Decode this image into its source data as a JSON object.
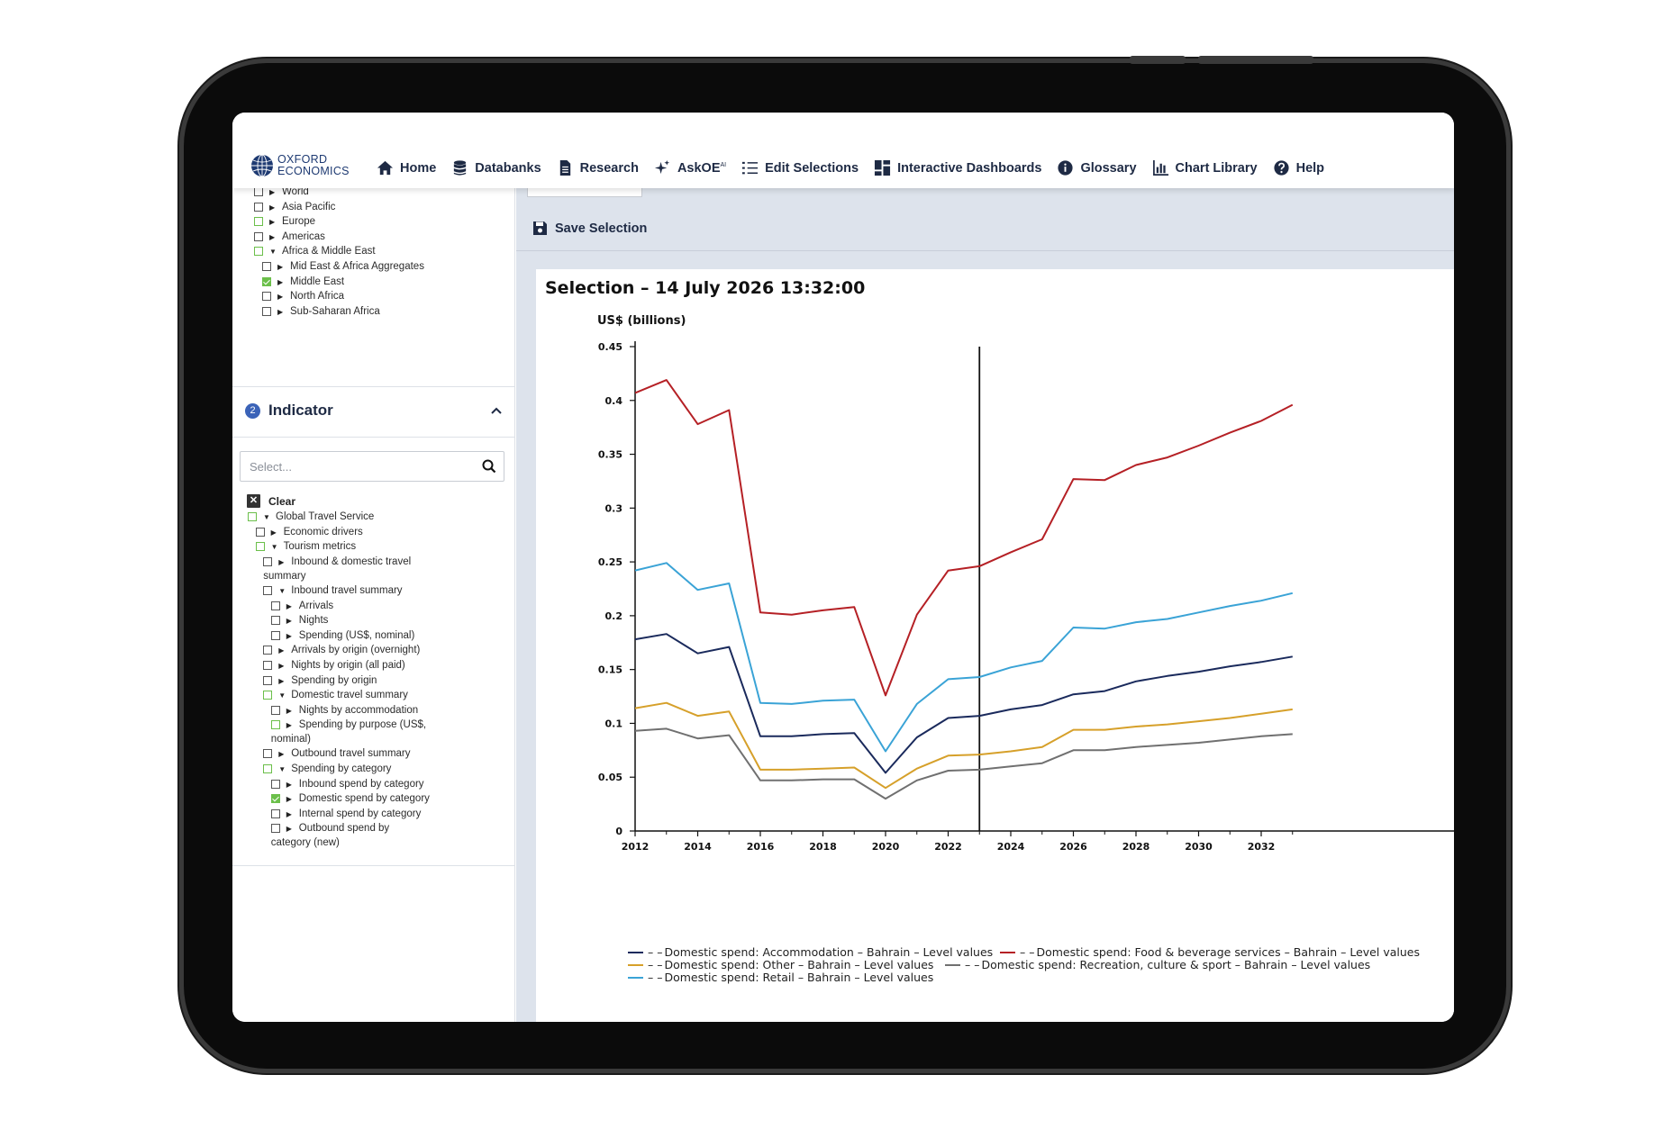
{
  "brand": {
    "line1": "OXFORD",
    "line2": "ECONOMICS"
  },
  "nav": [
    {
      "label": "Home",
      "icon": "home-icon"
    },
    {
      "label": "Databanks",
      "icon": "database-icon"
    },
    {
      "label": "Research",
      "icon": "document-icon"
    },
    {
      "label": "AskOE",
      "sup": "AI",
      "icon": "sparkle-icon"
    },
    {
      "label": "Edit Selections",
      "icon": "list-icon"
    },
    {
      "label": "Interactive Dashboards",
      "icon": "dashboard-icon"
    },
    {
      "label": "Glossary",
      "icon": "info-icon"
    },
    {
      "label": "Chart Library",
      "icon": "bar-chart-icon"
    },
    {
      "label": "Help",
      "icon": "help-icon"
    }
  ],
  "location_tree": [
    {
      "label": "World",
      "state": "none",
      "caret": "right",
      "indent": 0
    },
    {
      "label": "Asia Pacific",
      "state": "none",
      "caret": "right",
      "indent": 0
    },
    {
      "label": "Europe",
      "state": "partial",
      "caret": "right",
      "indent": 0
    },
    {
      "label": "Americas",
      "state": "none",
      "caret": "right",
      "indent": 0
    },
    {
      "label": "Africa & Middle East",
      "state": "partial",
      "caret": "down",
      "indent": 0
    },
    {
      "label": "Mid East & Africa Aggregates",
      "state": "none",
      "caret": "right",
      "indent": 1
    },
    {
      "label": "Middle East",
      "state": "checked",
      "caret": "right",
      "indent": 1
    },
    {
      "label": "North Africa",
      "state": "none",
      "caret": "right",
      "indent": 1
    },
    {
      "label": "Sub-Saharan Africa",
      "state": "none",
      "caret": "right",
      "indent": 1
    }
  ],
  "indicator": {
    "step": "2",
    "title": "Indicator",
    "search_placeholder": "Select...",
    "clear_label": "Clear"
  },
  "indicator_tree": [
    {
      "label": "Global Travel Service",
      "state": "partial",
      "caret": "down",
      "indent": 0
    },
    {
      "label": "Economic drivers",
      "state": "none",
      "caret": "right",
      "indent": 1
    },
    {
      "label": "Tourism metrics",
      "state": "partial",
      "caret": "down",
      "indent": 1
    },
    {
      "label": "Inbound & domestic travel",
      "label2": "summary",
      "state": "none",
      "caret": "right",
      "indent": 2
    },
    {
      "label": "Inbound travel summary",
      "state": "none",
      "caret": "down",
      "indent": 2
    },
    {
      "label": "Arrivals",
      "state": "none",
      "caret": "right",
      "indent": 3
    },
    {
      "label": "Nights",
      "state": "none",
      "caret": "right",
      "indent": 3
    },
    {
      "label": "Spending (US$, nominal)",
      "state": "none",
      "caret": "right",
      "indent": 3
    },
    {
      "label": "Arrivals by origin (overnight)",
      "state": "none",
      "caret": "right",
      "indent": 2
    },
    {
      "label": "Nights by origin (all paid)",
      "state": "none",
      "caret": "right",
      "indent": 2
    },
    {
      "label": "Spending by origin",
      "state": "none",
      "caret": "right",
      "indent": 2
    },
    {
      "label": "Domestic travel summary",
      "state": "partial",
      "caret": "down",
      "indent": 2
    },
    {
      "label": "Nights by accommodation",
      "state": "none",
      "caret": "right",
      "indent": 3
    },
    {
      "label": "Spending by purpose (US$,",
      "label2": "nominal)",
      "state": "partial",
      "caret": "right",
      "indent": 3
    },
    {
      "label": "Outbound travel summary",
      "state": "none",
      "caret": "right",
      "indent": 2
    },
    {
      "label": "Spending by category",
      "state": "partial",
      "caret": "down",
      "indent": 2
    },
    {
      "label": "Inbound spend by category",
      "state": "none",
      "caret": "right",
      "indent": 3
    },
    {
      "label": "Domestic spend by category",
      "state": "checked",
      "caret": "right",
      "indent": 3
    },
    {
      "label": "Internal spend by category",
      "state": "none",
      "caret": "right",
      "indent": 3
    },
    {
      "label": "Outbound spend by",
      "label2": "category (new)",
      "state": "none",
      "caret": "right",
      "indent": 3
    }
  ],
  "toolbar": {
    "save_label": "Save Selection"
  },
  "chart_data": {
    "type": "line",
    "title": "Selection – 14 July 2026 13:32:00",
    "ylabel": "US$ (billions)",
    "xlabel": "",
    "xlim": [
      2012,
      2033
    ],
    "ylim": [
      0,
      0.45
    ],
    "yticks": [
      "0",
      "0.05",
      "0.1",
      "0.15",
      "0.2",
      "0.25",
      "0.3",
      "0.35",
      "0.4",
      "0.45"
    ],
    "xticks": [
      "2012",
      "2014",
      "2016",
      "2018",
      "2020",
      "2022",
      "2024",
      "2026",
      "2028",
      "2030",
      "2032"
    ],
    "forecast_line_x": 2023,
    "grid": false,
    "legend_position": "bottom",
    "x": [
      2012,
      2013,
      2014,
      2015,
      2016,
      2017,
      2018,
      2019,
      2020,
      2021,
      2022,
      2023,
      2024,
      2025,
      2026,
      2027,
      2028,
      2029,
      2030,
      2031,
      2032,
      2033
    ],
    "series": [
      {
        "name": "Domestic spend: Accommodation – Bahrain – Level values",
        "color": "#1a2a5c",
        "values": [
          0.178,
          0.183,
          0.165,
          0.171,
          0.088,
          0.088,
          0.09,
          0.091,
          0.054,
          0.087,
          0.105,
          0.107,
          0.113,
          0.117,
          0.127,
          0.13,
          0.139,
          0.144,
          0.148,
          0.153,
          0.157,
          0.162
        ]
      },
      {
        "name": "Domestic spend: Food & beverage services – Bahrain – Level values",
        "color": "#b52025",
        "values": [
          0.407,
          0.419,
          0.378,
          0.391,
          0.203,
          0.201,
          0.205,
          0.208,
          0.126,
          0.201,
          0.242,
          0.246,
          0.259,
          0.271,
          0.327,
          0.326,
          0.34,
          0.347,
          0.358,
          0.37,
          0.381,
          0.396
        ]
      },
      {
        "name": "Domestic spend: Other – Bahrain – Level values",
        "color": "#d6a02a",
        "values": [
          0.114,
          0.119,
          0.107,
          0.111,
          0.057,
          0.057,
          0.058,
          0.059,
          0.04,
          0.058,
          0.07,
          0.071,
          0.074,
          0.078,
          0.094,
          0.094,
          0.097,
          0.099,
          0.102,
          0.105,
          0.109,
          0.113
        ]
      },
      {
        "name": "Domestic spend: Recreation, culture & sport – Bahrain – Level values",
        "color": "#707070",
        "values": [
          0.093,
          0.095,
          0.086,
          0.089,
          0.047,
          0.047,
          0.048,
          0.048,
          0.03,
          0.047,
          0.056,
          0.057,
          0.06,
          0.063,
          0.075,
          0.075,
          0.078,
          0.08,
          0.082,
          0.085,
          0.088,
          0.09
        ]
      },
      {
        "name": "Domestic spend: Retail – Bahrain – Level values",
        "color": "#3aa3d6",
        "values": [
          0.242,
          0.249,
          0.224,
          0.23,
          0.119,
          0.118,
          0.121,
          0.122,
          0.074,
          0.118,
          0.141,
          0.143,
          0.152,
          0.158,
          0.189,
          0.188,
          0.194,
          0.197,
          0.203,
          0.209,
          0.214,
          0.221
        ]
      }
    ]
  }
}
